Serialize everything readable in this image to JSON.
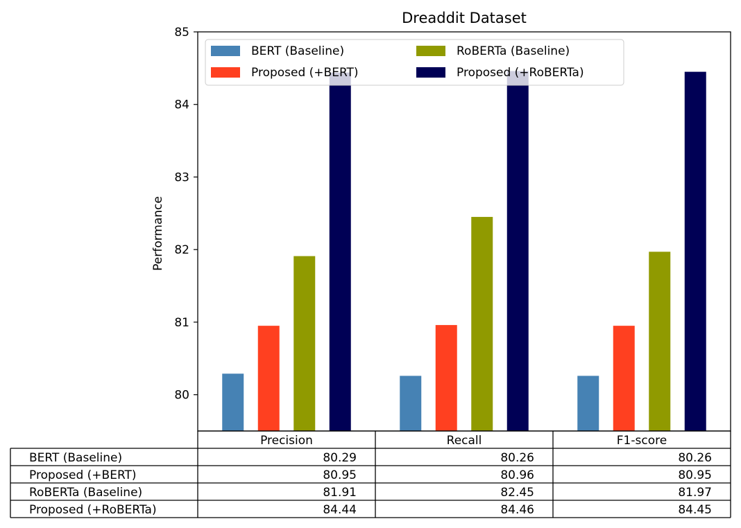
{
  "chart_data": {
    "type": "bar",
    "title": "Dreaddit Dataset",
    "xlabel": "",
    "ylabel": "Performance",
    "ylim": [
      79.5,
      85.0
    ],
    "yticks": [
      80,
      81,
      82,
      83,
      84,
      85
    ],
    "grid": false,
    "legend_position": "top",
    "categories": [
      "Precision",
      "Recall",
      "F1-score"
    ],
    "series": [
      {
        "name": "BERT (Baseline)",
        "color": "#4682b4",
        "values": [
          80.29,
          80.26,
          80.26
        ]
      },
      {
        "name": "Proposed (+BERT)",
        "color": "#ff4020",
        "values": [
          80.95,
          80.96,
          80.95
        ]
      },
      {
        "name": "RoBERTa (Baseline)",
        "color": "#909a00",
        "values": [
          81.91,
          82.45,
          81.97
        ]
      },
      {
        "name": "Proposed (+RoBERTa)",
        "color": "#000055",
        "values": [
          84.44,
          84.46,
          84.45
        ]
      }
    ],
    "table": {
      "rows": [
        {
          "label": "BERT (Baseline)",
          "cells": [
            "80.29",
            "80.26",
            "80.26"
          ]
        },
        {
          "label": "Proposed (+BERT)",
          "cells": [
            "80.95",
            "80.96",
            "80.95"
          ]
        },
        {
          "label": "RoBERTa (Baseline)",
          "cells": [
            "81.91",
            "82.45",
            "81.97"
          ]
        },
        {
          "label": "Proposed (+RoBERTa)",
          "cells": [
            "84.44",
            "84.46",
            "84.45"
          ]
        }
      ]
    }
  }
}
